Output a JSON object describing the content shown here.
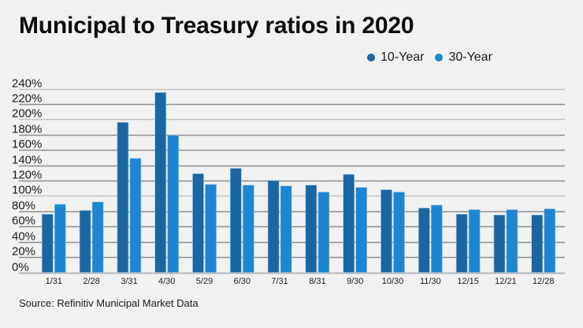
{
  "chart_data": {
    "type": "bar",
    "title": "Municipal to Treasury ratios in 2020",
    "xlabel": "",
    "ylabel": "",
    "ylim": [
      0,
      240
    ],
    "yticks": [
      0,
      20,
      40,
      60,
      80,
      100,
      120,
      140,
      160,
      180,
      200,
      220,
      240
    ],
    "ytick_labels": [
      "0%",
      "20%",
      "40%",
      "60%",
      "80%",
      "100%",
      "120%",
      "140%",
      "160%",
      "180%",
      "200%",
      "220%",
      "240%"
    ],
    "grid": true,
    "legend_position": "top-right",
    "categories": [
      "1/31",
      "2/28",
      "3/31",
      "4/30",
      "5/29",
      "6/30",
      "7/31",
      "8/31",
      "9/30",
      "10/30",
      "11/30",
      "12/15",
      "12/21",
      "12/28"
    ],
    "series": [
      {
        "name": "10-Year",
        "color": "#1b66a1",
        "values": [
          76,
          81,
          196,
          235,
          129,
          136,
          120,
          114,
          128,
          108,
          84,
          76,
          75,
          75
        ]
      },
      {
        "name": "30-Year",
        "color": "#1e86d1",
        "values": [
          89,
          92,
          149,
          179,
          115,
          114,
          113,
          105,
          111,
          105,
          88,
          82,
          82,
          83
        ]
      }
    ],
    "source": "Source: Refinitiv Municipal Market Data"
  }
}
